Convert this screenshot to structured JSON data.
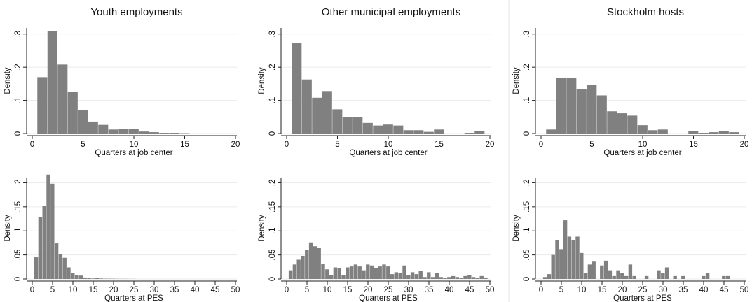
{
  "chart_data": [
    {
      "type": "histogram",
      "title": "Youth employments",
      "xlabel": "Quarters at job center",
      "ylabel": "Density",
      "xlim": [
        0,
        20
      ],
      "ylim": [
        0,
        0.31
      ],
      "xticks": [
        "0",
        "5",
        "10",
        "15",
        "20"
      ],
      "yticks": [
        {
          "v": 0,
          "label": "0"
        },
        {
          "v": 0.1,
          "label": ".1"
        },
        {
          "v": 0.2,
          "label": ".2"
        },
        {
          "v": 0.3,
          "label": ".3"
        }
      ],
      "grid": true,
      "bin_width": 1,
      "bins": [
        {
          "x0": 0.5,
          "y": 0.17
        },
        {
          "x0": 1.5,
          "y": 0.31
        },
        {
          "x0": 2.5,
          "y": 0.208
        },
        {
          "x0": 3.5,
          "y": 0.125
        },
        {
          "x0": 4.5,
          "y": 0.071
        },
        {
          "x0": 5.5,
          "y": 0.036
        },
        {
          "x0": 6.5,
          "y": 0.026
        },
        {
          "x0": 7.5,
          "y": 0.012
        },
        {
          "x0": 8.5,
          "y": 0.014
        },
        {
          "x0": 9.5,
          "y": 0.013
        },
        {
          "x0": 10.5,
          "y": 0.006
        },
        {
          "x0": 11.5,
          "y": 0.004
        },
        {
          "x0": 12.5,
          "y": 0.002
        },
        {
          "x0": 13.5,
          "y": 0.002
        },
        {
          "x0": 14.5,
          "y": 0.001
        }
      ]
    },
    {
      "type": "histogram",
      "title": "Other municipal employments",
      "xlabel": "Quarters at job center",
      "ylabel": "Density",
      "xlim": [
        0,
        20
      ],
      "ylim": [
        0,
        0.31
      ],
      "xticks": [
        "0",
        "5",
        "10",
        "15",
        "20"
      ],
      "yticks": [
        {
          "v": 0,
          "label": "0"
        },
        {
          "v": 0.1,
          "label": ".1"
        },
        {
          "v": 0.2,
          "label": ".2"
        },
        {
          "v": 0.3,
          "label": ".3"
        }
      ],
      "grid": true,
      "bin_width": 1,
      "bins": [
        {
          "x0": 0.5,
          "y": 0.272
        },
        {
          "x0": 1.5,
          "y": 0.163
        },
        {
          "x0": 2.5,
          "y": 0.108
        },
        {
          "x0": 3.5,
          "y": 0.128
        },
        {
          "x0": 4.5,
          "y": 0.073
        },
        {
          "x0": 5.5,
          "y": 0.049
        },
        {
          "x0": 6.5,
          "y": 0.049
        },
        {
          "x0": 7.5,
          "y": 0.032
        },
        {
          "x0": 8.5,
          "y": 0.024
        },
        {
          "x0": 9.5,
          "y": 0.027
        },
        {
          "x0": 10.5,
          "y": 0.024
        },
        {
          "x0": 11.5,
          "y": 0.01
        },
        {
          "x0": 12.5,
          "y": 0.01
        },
        {
          "x0": 13.5,
          "y": 0.005
        },
        {
          "x0": 14.5,
          "y": 0.012
        },
        {
          "x0": 15.5,
          "y": 0.0
        },
        {
          "x0": 16.5,
          "y": 0.0
        },
        {
          "x0": 17.5,
          "y": 0.002
        },
        {
          "x0": 18.5,
          "y": 0.008
        }
      ]
    },
    {
      "type": "histogram",
      "title": "Stockholm hosts",
      "xlabel": "Quarters at job center",
      "ylabel": "Density",
      "xlim": [
        0,
        20
      ],
      "ylim": [
        0,
        0.31
      ],
      "xticks": [
        "0",
        "5",
        "10",
        "15",
        "20"
      ],
      "yticks": [
        {
          "v": 0,
          "label": "0"
        },
        {
          "v": 0.1,
          "label": ".1"
        },
        {
          "v": 0.2,
          "label": ".2"
        },
        {
          "v": 0.3,
          "label": ".3"
        }
      ],
      "grid": true,
      "bin_width": 1,
      "bins": [
        {
          "x0": 0.5,
          "y": 0.012
        },
        {
          "x0": 1.5,
          "y": 0.167
        },
        {
          "x0": 2.5,
          "y": 0.167
        },
        {
          "x0": 3.5,
          "y": 0.133
        },
        {
          "x0": 4.5,
          "y": 0.147
        },
        {
          "x0": 5.5,
          "y": 0.115
        },
        {
          "x0": 6.5,
          "y": 0.067
        },
        {
          "x0": 7.5,
          "y": 0.061
        },
        {
          "x0": 8.5,
          "y": 0.054
        },
        {
          "x0": 9.5,
          "y": 0.025
        },
        {
          "x0": 10.5,
          "y": 0.01
        },
        {
          "x0": 11.5,
          "y": 0.012
        },
        {
          "x0": 12.5,
          "y": 0.0
        },
        {
          "x0": 13.5,
          "y": 0.0
        },
        {
          "x0": 14.5,
          "y": 0.007
        },
        {
          "x0": 15.5,
          "y": 0.002
        },
        {
          "x0": 16.5,
          "y": 0.004
        },
        {
          "x0": 17.5,
          "y": 0.007
        },
        {
          "x0": 18.5,
          "y": 0.004
        }
      ]
    },
    {
      "type": "histogram",
      "title": "",
      "xlabel": "Quarters at PES",
      "ylabel": "Density",
      "xlim": [
        0,
        50
      ],
      "ylim": [
        0,
        0.205
      ],
      "xticks": [
        "0",
        "5",
        "10",
        "15",
        "20",
        "25",
        "30",
        "35",
        "40",
        "45",
        "50"
      ],
      "yticks": [
        {
          "v": 0,
          "label": "0"
        },
        {
          "v": 0.05,
          "label": ".05"
        },
        {
          "v": 0.1,
          "label": ".1"
        },
        {
          "v": 0.15,
          "label": ".15"
        },
        {
          "v": 0.2,
          "label": ".2"
        }
      ],
      "grid": true,
      "bin_width": 1,
      "bins": [
        {
          "x0": 0.5,
          "y": 0.045
        },
        {
          "x0": 1.5,
          "y": 0.128
        },
        {
          "x0": 2.5,
          "y": 0.152
        },
        {
          "x0": 3.5,
          "y": 0.217
        },
        {
          "x0": 4.5,
          "y": 0.198
        },
        {
          "x0": 5.5,
          "y": 0.074
        },
        {
          "x0": 6.5,
          "y": 0.051
        },
        {
          "x0": 7.5,
          "y": 0.044
        },
        {
          "x0": 8.5,
          "y": 0.024
        },
        {
          "x0": 9.5,
          "y": 0.013
        },
        {
          "x0": 10.5,
          "y": 0.008
        },
        {
          "x0": 11.5,
          "y": 0.007
        },
        {
          "x0": 12.5,
          "y": 0.003
        },
        {
          "x0": 13.5,
          "y": 0.002
        },
        {
          "x0": 14.5,
          "y": 0.001
        },
        {
          "x0": 15.5,
          "y": 0.0015
        },
        {
          "x0": 16.5,
          "y": 0.001
        },
        {
          "x0": 17.5,
          "y": 0.0007
        },
        {
          "x0": 18.5,
          "y": 0.0006
        },
        {
          "x0": 19.5,
          "y": 0.0005
        },
        {
          "x0": 20.5,
          "y": 0.0004
        },
        {
          "x0": 21.5,
          "y": 0.0003
        },
        {
          "x0": 22.5,
          "y": 0.0003
        },
        {
          "x0": 23.5,
          "y": 0.0002
        },
        {
          "x0": 24.5,
          "y": 0.0002
        }
      ]
    },
    {
      "type": "histogram",
      "title": "",
      "xlabel": "Quarters at PES",
      "ylabel": "Density",
      "xlim": [
        0,
        50
      ],
      "ylim": [
        0,
        0.205
      ],
      "xticks": [
        "0",
        "5",
        "10",
        "15",
        "20",
        "25",
        "30",
        "35",
        "40",
        "45",
        "50"
      ],
      "yticks": [
        {
          "v": 0,
          "label": "0"
        },
        {
          "v": 0.05,
          "label": ".05"
        },
        {
          "v": 0.1,
          "label": ".1"
        },
        {
          "v": 0.15,
          "label": ".15"
        },
        {
          "v": 0.2,
          "label": ".2"
        }
      ],
      "grid": true,
      "bin_width": 1,
      "bins": [
        {
          "x0": 0.5,
          "y": 0.018
        },
        {
          "x0": 1.5,
          "y": 0.03
        },
        {
          "x0": 2.5,
          "y": 0.04
        },
        {
          "x0": 3.5,
          "y": 0.048
        },
        {
          "x0": 4.5,
          "y": 0.06
        },
        {
          "x0": 5.5,
          "y": 0.076
        },
        {
          "x0": 6.5,
          "y": 0.068
        },
        {
          "x0": 7.5,
          "y": 0.064
        },
        {
          "x0": 8.5,
          "y": 0.032
        },
        {
          "x0": 9.5,
          "y": 0.02
        },
        {
          "x0": 10.5,
          "y": 0.008
        },
        {
          "x0": 11.5,
          "y": 0.024
        },
        {
          "x0": 12.5,
          "y": 0.022
        },
        {
          "x0": 13.5,
          "y": 0.008
        },
        {
          "x0": 14.5,
          "y": 0.024
        },
        {
          "x0": 15.5,
          "y": 0.026
        },
        {
          "x0": 16.5,
          "y": 0.03
        },
        {
          "x0": 17.5,
          "y": 0.026
        },
        {
          "x0": 18.5,
          "y": 0.018
        },
        {
          "x0": 19.5,
          "y": 0.03
        },
        {
          "x0": 20.5,
          "y": 0.028
        },
        {
          "x0": 21.5,
          "y": 0.022
        },
        {
          "x0": 22.5,
          "y": 0.026
        },
        {
          "x0": 23.5,
          "y": 0.03
        },
        {
          "x0": 24.5,
          "y": 0.026
        },
        {
          "x0": 25.5,
          "y": 0.01
        },
        {
          "x0": 26.5,
          "y": 0.014
        },
        {
          "x0": 27.5,
          "y": 0.012
        },
        {
          "x0": 28.5,
          "y": 0.028
        },
        {
          "x0": 29.5,
          "y": 0.008
        },
        {
          "x0": 30.5,
          "y": 0.014
        },
        {
          "x0": 31.5,
          "y": 0.01
        },
        {
          "x0": 32.5,
          "y": 0.016
        },
        {
          "x0": 33.5,
          "y": 0.004
        },
        {
          "x0": 34.5,
          "y": 0.014
        },
        {
          "x0": 35.5,
          "y": 0.004
        },
        {
          "x0": 36.5,
          "y": 0.012
        },
        {
          "x0": 37.5,
          "y": 0.004
        },
        {
          "x0": 38.5,
          "y": 0.002
        },
        {
          "x0": 39.5,
          "y": 0.004
        },
        {
          "x0": 40.5,
          "y": 0.006
        },
        {
          "x0": 41.5,
          "y": 0.004
        },
        {
          "x0": 42.5,
          "y": 0.002
        },
        {
          "x0": 43.5,
          "y": 0.006
        },
        {
          "x0": 44.5,
          "y": 0.008
        },
        {
          "x0": 45.5,
          "y": 0.004
        },
        {
          "x0": 46.5,
          "y": 0.002
        },
        {
          "x0": 47.5,
          "y": 0.006
        },
        {
          "x0": 48.5,
          "y": 0.003
        }
      ]
    },
    {
      "type": "histogram",
      "title": "",
      "xlabel": "Quarters at PES",
      "ylabel": "Density",
      "xlim": [
        0,
        50
      ],
      "ylim": [
        0,
        0.205
      ],
      "xticks": [
        "0",
        "5",
        "10",
        "15",
        "20",
        "25",
        "30",
        "35",
        "40",
        "45",
        "50"
      ],
      "yticks": [
        {
          "v": 0,
          "label": "0"
        },
        {
          "v": 0.05,
          "label": ".05"
        },
        {
          "v": 0.1,
          "label": ".1"
        },
        {
          "v": 0.15,
          "label": ".15"
        },
        {
          "v": 0.2,
          "label": ".2"
        }
      ],
      "grid": true,
      "bin_width": 1,
      "bins": [
        {
          "x0": 0.5,
          "y": 0.004
        },
        {
          "x0": 1.5,
          "y": 0.01
        },
        {
          "x0": 2.5,
          "y": 0.05
        },
        {
          "x0": 3.5,
          "y": 0.08
        },
        {
          "x0": 4.5,
          "y": 0.062
        },
        {
          "x0": 5.5,
          "y": 0.122
        },
        {
          "x0": 6.5,
          "y": 0.088
        },
        {
          "x0": 7.5,
          "y": 0.08
        },
        {
          "x0": 8.5,
          "y": 0.088
        },
        {
          "x0": 9.5,
          "y": 0.054
        },
        {
          "x0": 10.5,
          "y": 0.012
        },
        {
          "x0": 11.5,
          "y": 0.03
        },
        {
          "x0": 12.5,
          "y": 0.036
        },
        {
          "x0": 13.5,
          "y": 0.0
        },
        {
          "x0": 14.5,
          "y": 0.028
        },
        {
          "x0": 15.5,
          "y": 0.038
        },
        {
          "x0": 16.5,
          "y": 0.018
        },
        {
          "x0": 17.5,
          "y": 0.006
        },
        {
          "x0": 18.5,
          "y": 0.018
        },
        {
          "x0": 19.5,
          "y": 0.012
        },
        {
          "x0": 20.5,
          "y": 0.006
        },
        {
          "x0": 21.5,
          "y": 0.03
        },
        {
          "x0": 22.5,
          "y": 0.006
        },
        {
          "x0": 23.5,
          "y": 0.0
        },
        {
          "x0": 24.5,
          "y": 0.0
        },
        {
          "x0": 25.5,
          "y": 0.006
        },
        {
          "x0": 26.5,
          "y": 0.0
        },
        {
          "x0": 27.5,
          "y": 0.0
        },
        {
          "x0": 28.5,
          "y": 0.018
        },
        {
          "x0": 29.5,
          "y": 0.012
        },
        {
          "x0": 30.5,
          "y": 0.024
        },
        {
          "x0": 31.5,
          "y": 0.0
        },
        {
          "x0": 32.5,
          "y": 0.006
        },
        {
          "x0": 33.5,
          "y": 0.0
        },
        {
          "x0": 34.5,
          "y": 0.006
        },
        {
          "x0": 35.5,
          "y": 0.0
        },
        {
          "x0": 36.5,
          "y": 0.0
        },
        {
          "x0": 37.5,
          "y": 0.0
        },
        {
          "x0": 38.5,
          "y": 0.0
        },
        {
          "x0": 39.5,
          "y": 0.006
        },
        {
          "x0": 40.5,
          "y": 0.012
        },
        {
          "x0": 41.5,
          "y": 0.0
        },
        {
          "x0": 42.5,
          "y": 0.0
        },
        {
          "x0": 43.5,
          "y": 0.0
        },
        {
          "x0": 44.5,
          "y": 0.006
        },
        {
          "x0": 45.5,
          "y": 0.006
        }
      ]
    }
  ]
}
